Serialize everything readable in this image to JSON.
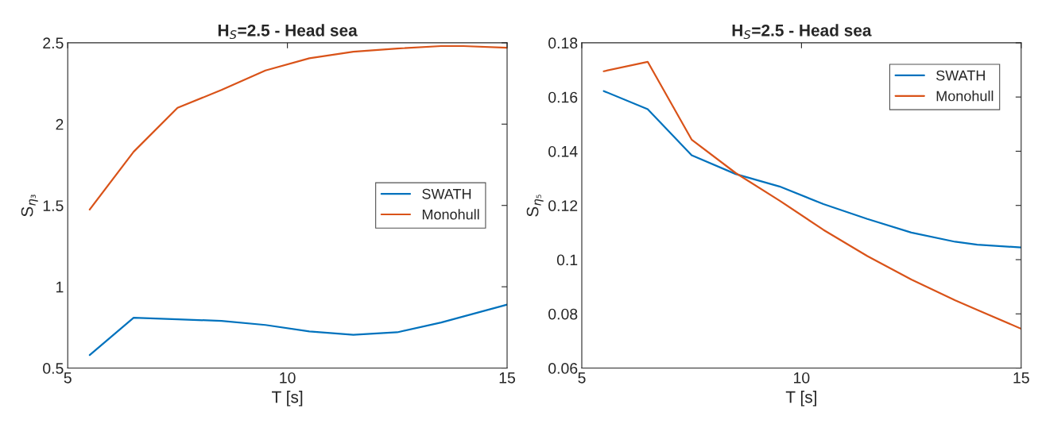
{
  "chart_data": [
    {
      "type": "line",
      "title": "H$_{S}$=2.5 - Head sea",
      "xlabel": "T [s]",
      "ylabel": "S$_{η₃}$",
      "xlim": [
        5,
        15
      ],
      "xticks": [
        5,
        10,
        15
      ],
      "ylim": [
        0.5,
        2.5
      ],
      "yticks": [
        0.5,
        1,
        1.5,
        2,
        2.5
      ],
      "grid": false,
      "legend": "right",
      "series": [
        {
          "name": "SWATH",
          "color": "#0072bd",
          "x": [
            5.5,
            6.5,
            7.5,
            8.5,
            9.5,
            10.5,
            11.5,
            12.5,
            13.5,
            15
          ],
          "values": [
            0.58,
            0.81,
            0.8,
            0.79,
            0.765,
            0.725,
            0.705,
            0.72,
            0.78,
            0.89
          ]
        },
        {
          "name": "Monohull",
          "color": "#d95319",
          "x": [
            5.5,
            6.5,
            7.5,
            8.5,
            9.5,
            10.5,
            11.5,
            12.5,
            13.5,
            14,
            15
          ],
          "values": [
            1.475,
            1.83,
            2.1,
            2.21,
            2.33,
            2.405,
            2.445,
            2.465,
            2.48,
            2.48,
            2.47
          ]
        }
      ]
    },
    {
      "type": "line",
      "title": "H$_{S}$=2.5 - Head sea",
      "xlabel": "T [s]",
      "ylabel": "S$_{η₅}$",
      "xlim": [
        5,
        15
      ],
      "xticks": [
        5,
        10,
        15
      ],
      "ylim": [
        0.06,
        0.18
      ],
      "yticks": [
        0.06,
        0.08,
        0.1,
        0.12,
        0.14,
        0.16,
        0.18
      ],
      "grid": false,
      "legend": "top right",
      "series": [
        {
          "name": "SWATH",
          "color": "#0072bd",
          "x": [
            5.5,
            6.5,
            7.5,
            8.5,
            9.5,
            10.5,
            11.5,
            12.5,
            13.5,
            14,
            15
          ],
          "values": [
            0.1622,
            0.1555,
            0.1385,
            0.1316,
            0.127,
            0.1205,
            0.115,
            0.11,
            0.1066,
            0.1055,
            0.1045
          ]
        },
        {
          "name": "Monohull",
          "color": "#d95319",
          "x": [
            5.5,
            6.5,
            7.5,
            8.5,
            9.5,
            10.5,
            11.5,
            12.5,
            13.5,
            14,
            15
          ],
          "values": [
            0.1695,
            0.173,
            0.1443,
            0.132,
            0.1218,
            0.111,
            0.1013,
            0.0927,
            0.085,
            0.0815,
            0.0745
          ]
        }
      ]
    }
  ]
}
